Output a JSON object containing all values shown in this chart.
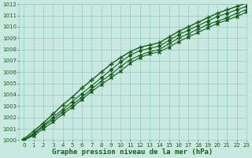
{
  "title": "Graphe pression niveau de la mer (hPa)",
  "xlim": [
    -0.5,
    23
  ],
  "ylim": [
    1000,
    1012
  ],
  "xticks": [
    0,
    1,
    2,
    3,
    4,
    5,
    6,
    7,
    8,
    9,
    10,
    11,
    12,
    13,
    14,
    15,
    16,
    17,
    18,
    19,
    20,
    21,
    22,
    23
  ],
  "yticks": [
    1000,
    1001,
    1002,
    1003,
    1004,
    1005,
    1006,
    1007,
    1008,
    1009,
    1010,
    1011,
    1012
  ],
  "bg_color": "#c8e8e0",
  "grid_color": "#98ccc0",
  "line_color": "#1a5c20",
  "curves": [
    [
      1000.0,
      1000.5,
      1001.2,
      1001.8,
      1002.5,
      1003.1,
      1003.8,
      1004.5,
      1005.2,
      1005.8,
      1006.5,
      1007.1,
      1007.5,
      1007.8,
      1008.0,
      1008.5,
      1009.0,
      1009.4,
      1009.8,
      1010.2,
      1010.5,
      1010.8,
      1011.2,
      1011.5
    ],
    [
      1000.0,
      1000.6,
      1001.3,
      1002.0,
      1002.7,
      1003.4,
      1004.1,
      1004.8,
      1005.5,
      1006.2,
      1006.9,
      1007.5,
      1007.9,
      1008.1,
      1008.3,
      1008.8,
      1009.3,
      1009.7,
      1010.1,
      1010.5,
      1010.9,
      1011.2,
      1011.5,
      1011.8
    ],
    [
      1000.1,
      1000.8,
      1001.5,
      1002.3,
      1003.1,
      1003.8,
      1004.6,
      1005.3,
      1006.0,
      1006.7,
      1007.3,
      1007.8,
      1008.2,
      1008.4,
      1008.6,
      1009.1,
      1009.6,
      1010.0,
      1010.4,
      1010.8,
      1011.2,
      1011.5,
      1011.8,
      1012.1
    ],
    [
      1000.0,
      1000.4,
      1001.0,
      1001.6,
      1002.3,
      1002.9,
      1003.6,
      1004.3,
      1004.9,
      1005.5,
      1006.1,
      1006.8,
      1007.3,
      1007.6,
      1007.8,
      1008.2,
      1008.7,
      1009.1,
      1009.5,
      1009.9,
      1010.3,
      1010.6,
      1010.9,
      1011.3
    ]
  ],
  "markers": [
    "+",
    "D",
    "+",
    "x"
  ],
  "linewidths": [
    0.8,
    0.8,
    1.0,
    0.8
  ],
  "linestyles": [
    "-",
    "-",
    "-",
    "-"
  ],
  "markersizes": [
    4,
    2,
    4,
    3
  ],
  "title_fontsize": 6.5,
  "tick_fontsize": 5.0,
  "figwidth": 3.2,
  "figheight": 2.0,
  "dpi": 100
}
